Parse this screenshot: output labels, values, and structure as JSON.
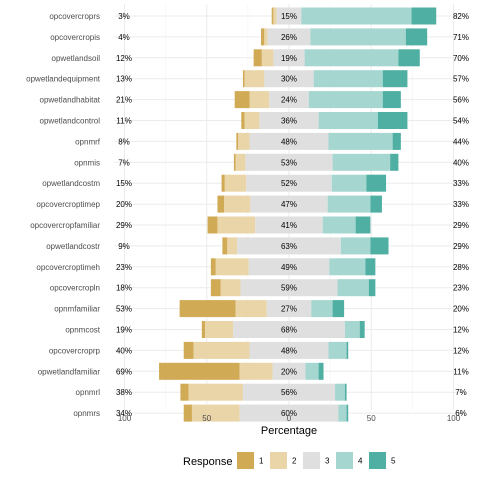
{
  "chart_data": {
    "type": "bar",
    "orientation": "horizontal-diverging",
    "xlabel": "Percentage",
    "x_ticks": [
      "100",
      "50",
      "0",
      "50",
      "100"
    ],
    "legend_title": "Response",
    "legend_position": "bottom",
    "grid": true,
    "levels": [
      "1",
      "2",
      "3",
      "4",
      "5"
    ],
    "colors": [
      "#D1AA55",
      "#E9D5A8",
      "#DFDFDF",
      "#A5D6D0",
      "#50AFA3"
    ],
    "rows": [
      {
        "label": "opcovercroprs",
        "values": [
          1,
          2,
          15,
          67,
          15
        ],
        "low_label": "3%",
        "mid_label": "15%",
        "high_label": "82%"
      },
      {
        "label": "opcovercropis",
        "values": [
          2,
          2,
          26,
          58,
          13
        ],
        "low_label": "4%",
        "mid_label": "26%",
        "high_label": "71%"
      },
      {
        "label": "opwetlandsoil",
        "values": [
          5,
          7,
          19,
          57,
          13
        ],
        "low_label": "12%",
        "mid_label": "19%",
        "high_label": "70%"
      },
      {
        "label": "opwetlandequipment",
        "values": [
          1,
          12,
          30,
          42,
          15
        ],
        "low_label": "13%",
        "mid_label": "30%",
        "high_label": "57%"
      },
      {
        "label": "opwetlandhabitat",
        "values": [
          9,
          12,
          24,
          45,
          11
        ],
        "low_label": "21%",
        "mid_label": "24%",
        "high_label": "56%"
      },
      {
        "label": "opwetlandcontrol",
        "values": [
          2,
          9,
          36,
          36,
          18
        ],
        "low_label": "11%",
        "mid_label": "36%",
        "high_label": "54%"
      },
      {
        "label": "opnmrf",
        "values": [
          1,
          7,
          48,
          39,
          5
        ],
        "low_label": "8%",
        "mid_label": "48%",
        "high_label": "44%"
      },
      {
        "label": "opnmis",
        "values": [
          1,
          6,
          53,
          35,
          5
        ],
        "low_label": "7%",
        "mid_label": "53%",
        "high_label": "40%"
      },
      {
        "label": "opwetlandcostm",
        "values": [
          2,
          13,
          52,
          21,
          12
        ],
        "low_label": "15%",
        "mid_label": "52%",
        "high_label": "33%"
      },
      {
        "label": "opcovercroptimep",
        "values": [
          4,
          16,
          47,
          26,
          7
        ],
        "low_label": "20%",
        "mid_label": "47%",
        "high_label": "33%"
      },
      {
        "label": "opcovercropfamiliar",
        "values": [
          6,
          23,
          41,
          20,
          9
        ],
        "low_label": "29%",
        "mid_label": "41%",
        "high_label": "29%"
      },
      {
        "label": "opwetlandcostr",
        "values": [
          3,
          6,
          63,
          18,
          11
        ],
        "low_label": "9%",
        "mid_label": "63%",
        "high_label": "29%"
      },
      {
        "label": "opcovercroptimeh",
        "values": [
          3,
          20,
          49,
          22,
          6
        ],
        "low_label": "23%",
        "mid_label": "49%",
        "high_label": "28%"
      },
      {
        "label": "opcovercropln",
        "values": [
          6,
          12,
          59,
          19,
          4
        ],
        "low_label": "18%",
        "mid_label": "59%",
        "high_label": "23%"
      },
      {
        "label": "opnmfamiliar",
        "values": [
          34,
          19,
          27,
          13,
          7
        ],
        "low_label": "53%",
        "mid_label": "27%",
        "high_label": "20%"
      },
      {
        "label": "opnmcost",
        "values": [
          2,
          17,
          68,
          9,
          3
        ],
        "low_label": "19%",
        "mid_label": "68%",
        "high_label": "12%"
      },
      {
        "label": "opcovercroprp",
        "values": [
          6,
          34,
          48,
          11,
          1
        ],
        "low_label": "40%",
        "mid_label": "48%",
        "high_label": "12%"
      },
      {
        "label": "opwetlandfamiliar",
        "values": [
          49,
          20,
          20,
          8,
          3
        ],
        "low_label": "69%",
        "mid_label": "20%",
        "high_label": "11%"
      },
      {
        "label": "opnmrl",
        "values": [
          5,
          33,
          56,
          6,
          1
        ],
        "low_label": "38%",
        "mid_label": "56%",
        "high_label": "7%"
      },
      {
        "label": "opnmrs",
        "values": [
          5,
          29,
          60,
          5,
          1
        ],
        "low_label": "34%",
        "mid_label": "60%",
        "high_label": "6%"
      }
    ]
  }
}
